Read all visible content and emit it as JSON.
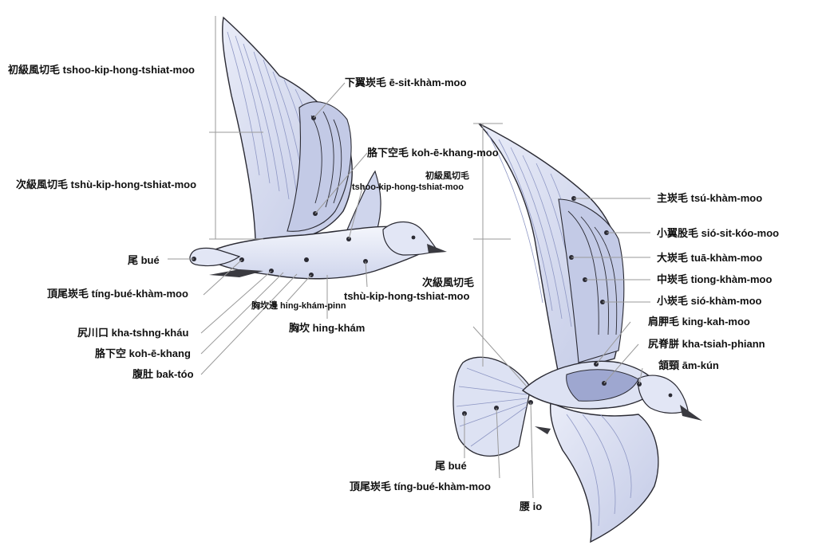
{
  "diagram_title": "",
  "theme": {
    "feather_fill": "#dde2f3",
    "feather_shade": "#b8c0e0",
    "feather_dark": "#8e97c4",
    "outline": "#2a2a33",
    "leader": "#9a9a9a",
    "beak": "#3a3a40"
  },
  "left_bird": {
    "labels": {
      "primaries": "初級風切毛 tshoo-kip-hong-tshiat-moo",
      "lesser_underwing_coverts": "下翼崁毛 ē-sit-khàm-moo",
      "axillaries": "胳下空毛 koh-ē-khang-moo",
      "primaries_inner_1": "初級風切毛",
      "primaries_inner_2": "tshoo-kip-hong-tshiat-moo",
      "secondaries": "次級風切毛 tshù-kip-hong-tshiat-moo",
      "tail": "尾 bué",
      "uppertail_coverts": "頂尾崁毛 tíng-bué-khàm-moo",
      "vent": "尻川口 kha-tshng-kháu",
      "flank": "胳下空 koh-ē-khang",
      "belly": "腹肚 bak-tóo",
      "breast_side": "胸坎邊 hing-khám-pinn",
      "breast": "胸坎 hing-khám",
      "secondaries_inner_1": "次級風切毛",
      "secondaries_inner_2": "tshù-kip-hong-tshiat-moo"
    }
  },
  "right_bird": {
    "labels": {
      "primary_coverts": "主崁毛 tsú-khàm-moo",
      "alula": "小翼股毛 sió-sit-kóo-moo",
      "greater_coverts": "大崁毛 tuā-khàm-moo",
      "median_coverts": "中崁毛 tiong-khàm-moo",
      "lesser_coverts": "小崁毛 sió-khàm-moo",
      "scapulars": "肩胛毛 king-kah-moo",
      "mantle": "尻脊胼 kha-tsiah-phiann",
      "nape": "頷頸 ām-kún",
      "tail": "尾 bué",
      "uppertail_coverts": "頂尾崁毛 tíng-bué-khàm-moo",
      "rump": "腰 io"
    }
  }
}
